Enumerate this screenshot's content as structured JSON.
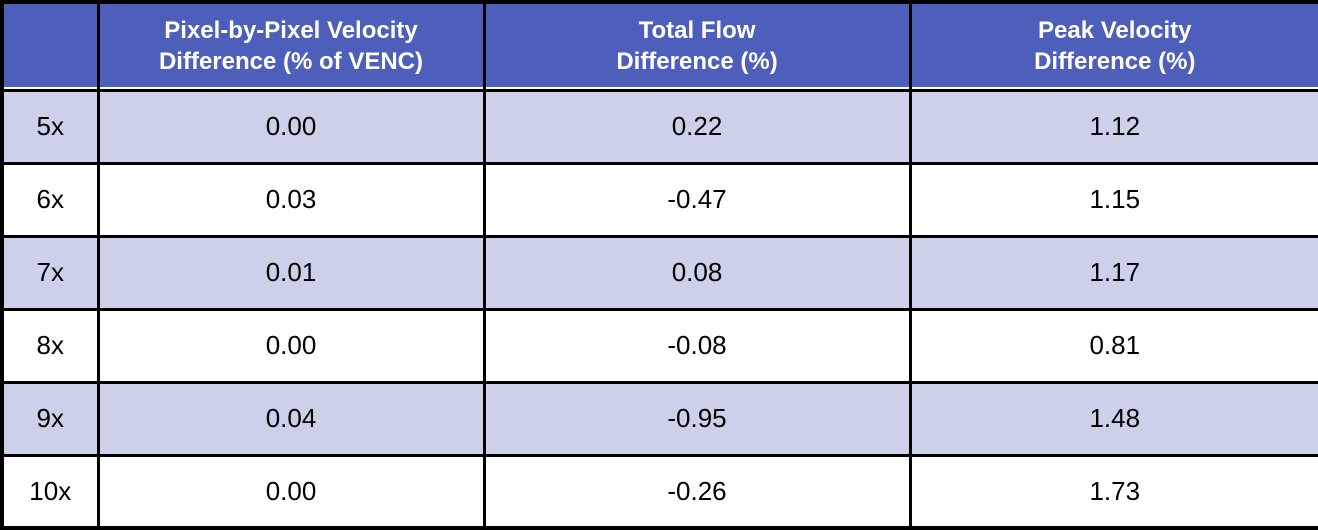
{
  "colors": {
    "header_bg": "#4d5fbb",
    "header_text": "#ffffff",
    "stripe_row_bg": "#cdd0e9",
    "plain_row_bg": "#ffffff",
    "grid_border": "#000000",
    "data_text": "#000000"
  },
  "table": {
    "header": {
      "label_col": "",
      "col1": "Pixel-by-Pixel Velocity\nDifference (% of VENC)",
      "col2": "Total Flow\nDifference (%)",
      "col3": "Peak Velocity\nDifference (%)"
    },
    "rows": [
      {
        "label": "5x",
        "values": [
          "0.00",
          "0.22",
          "1.12"
        ]
      },
      {
        "label": "6x",
        "values": [
          "0.03",
          "-0.47",
          "1.15"
        ]
      },
      {
        "label": "7x",
        "values": [
          "0.01",
          "0.08",
          "1.17"
        ]
      },
      {
        "label": "8x",
        "values": [
          "0.00",
          "-0.08",
          "0.81"
        ]
      },
      {
        "label": "9x",
        "values": [
          "0.04",
          "-0.95",
          "1.48"
        ]
      },
      {
        "label": "10x",
        "values": [
          "0.00",
          "-0.26",
          "1.73"
        ]
      }
    ]
  },
  "chart_data": {
    "type": "table",
    "title": "",
    "column_headers": [
      "",
      "Pixel-by-Pixel Velocity Difference (% of VENC)",
      "Total Flow Difference (%)",
      "Peak Velocity Difference (%)"
    ],
    "row_labels": [
      "5x",
      "6x",
      "7x",
      "8x",
      "9x",
      "10x"
    ],
    "series": [
      {
        "name": "Pixel-by-Pixel Velocity Difference (% of VENC)",
        "values": [
          0.0,
          0.03,
          0.01,
          0.0,
          0.04,
          0.0
        ]
      },
      {
        "name": "Total Flow Difference (%)",
        "values": [
          0.22,
          -0.47,
          0.08,
          -0.08,
          -0.95,
          -0.26
        ]
      },
      {
        "name": "Peak Velocity Difference (%)",
        "values": [
          1.12,
          1.15,
          1.17,
          0.81,
          1.48,
          1.73
        ]
      }
    ],
    "layout_hints": {
      "header_style": "blue background, white bold text",
      "row_striping": "odd rows lavender, even rows white",
      "grid": "black borders on all cells"
    }
  }
}
